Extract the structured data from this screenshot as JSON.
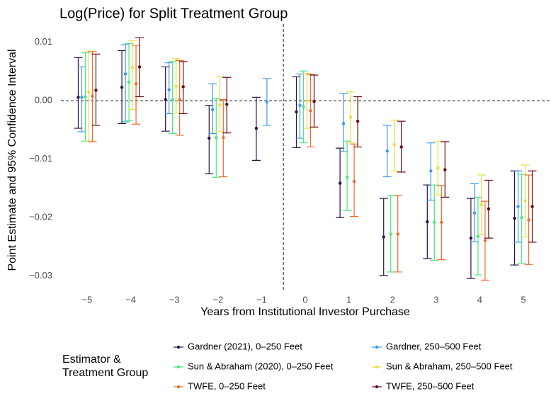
{
  "chart_data": {
    "type": "pointrange",
    "title": "Log(Price) for Split Treatment Group",
    "x_label": "Years from Institutional Investor Purchase",
    "y_label": "Point Estimate and 95% Confidence Interval",
    "legend_title": "Estimator & Treatment Group",
    "x": [
      -5,
      -4,
      -3,
      -2,
      -1,
      0,
      1,
      2,
      3,
      4,
      5
    ],
    "xlim": [
      -5.6,
      5.6
    ],
    "xticks": [
      {
        "value": -5,
        "label": "−5"
      },
      {
        "value": -4,
        "label": "−4"
      },
      {
        "value": -3,
        "label": "−3"
      },
      {
        "value": -2,
        "label": "−2"
      },
      {
        "value": -1,
        "label": "−1"
      },
      0,
      1,
      2,
      3,
      4,
      5
    ],
    "ylim": [
      -0.0327,
      0.0124
    ],
    "yticks": [
      {
        "value": -0.03,
        "label": "−0.03"
      },
      {
        "value": -0.02,
        "label": "−0.02"
      },
      {
        "value": -0.01,
        "label": "−0.01"
      },
      {
        "value": 0,
        "label": "0.00"
      },
      {
        "value": 0.01,
        "label": "0.01"
      }
    ],
    "reference_lines": {
      "y": 0,
      "x": -0.5
    },
    "series": [
      {
        "name": "Gardner (2021), 0–250 Feet",
        "color": "#2e0f46",
        "values": [
          0.0006,
          0.0023,
          0.0002,
          -0.0064,
          -0.0047,
          -0.0019,
          -0.0141,
          -0.0233,
          -0.0207,
          -0.0235,
          -0.0201
        ],
        "lower": [
          -0.0047,
          -0.0039,
          -0.0052,
          -0.0125,
          -0.0102,
          -0.008,
          -0.02,
          -0.0299,
          -0.027,
          -0.0304,
          -0.0281
        ],
        "upper": [
          0.0074,
          0.0086,
          0.0058,
          -0.0008,
          0.0006,
          0.0041,
          -0.0081,
          -0.0167,
          -0.0144,
          -0.0167,
          -0.012
        ]
      },
      {
        "name": "Gardner, 250–500 Feet",
        "color": "#3d9ae8",
        "values": [
          0.0006,
          0.0046,
          0.0019,
          -0.0015,
          -0.0002,
          -0.0008,
          -0.0039,
          -0.0086,
          -0.012,
          -0.0192,
          -0.0181
        ],
        "lower": [
          -0.0053,
          -0.0036,
          -0.0022,
          -0.0056,
          -0.0042,
          -0.0064,
          -0.0087,
          -0.013,
          -0.017,
          -0.0241,
          -0.0242
        ],
        "upper": [
          0.0058,
          0.0096,
          0.0065,
          0.0029,
          0.0038,
          0.0046,
          0.0013,
          -0.0042,
          -0.0072,
          -0.0142,
          -0.012
        ]
      },
      {
        "name": "Sun & Abraham (2020), 0–250 Feet",
        "color": "#4ae87f",
        "values": [
          0.0007,
          0.0032,
          0.0002,
          -0.0063,
          null,
          -0.001,
          -0.0131,
          -0.0228,
          -0.0208,
          -0.0232,
          -0.02
        ],
        "lower": [
          -0.0069,
          -0.0034,
          -0.0056,
          -0.0131,
          null,
          -0.0072,
          -0.0188,
          -0.0293,
          -0.0273,
          -0.0298,
          -0.0278
        ],
        "upper": [
          0.0082,
          0.0098,
          0.0067,
          0.0004,
          null,
          0.0051,
          -0.0069,
          -0.0162,
          -0.0144,
          -0.0165,
          -0.0126
        ]
      },
      {
        "name": "Sun & Abraham, 250–500 Feet",
        "color": "#e8df45",
        "values": [
          0.0015,
          0.0057,
          0.0025,
          -0.0007,
          null,
          0.0,
          -0.0028,
          -0.0075,
          -0.0115,
          -0.0178,
          -0.0171
        ],
        "lower": [
          -0.0069,
          -0.0015,
          -0.0021,
          -0.0053,
          null,
          -0.0047,
          -0.0072,
          -0.012,
          -0.0161,
          -0.0229,
          -0.0233
        ],
        "upper": [
          0.0085,
          0.0103,
          0.0072,
          0.0041,
          null,
          0.0047,
          0.0015,
          -0.0033,
          -0.0069,
          -0.0127,
          -0.011
        ]
      },
      {
        "name": "TWFE, 0–250 Feet",
        "color": "#ee6a2c",
        "values": [
          0.0008,
          0.0029,
          0.0002,
          -0.0063,
          null,
          -0.0017,
          -0.0138,
          -0.0228,
          -0.0208,
          -0.0239,
          -0.0204
        ],
        "lower": [
          -0.007,
          -0.004,
          -0.0059,
          -0.013,
          null,
          -0.0079,
          -0.0198,
          -0.0293,
          -0.0272,
          -0.0307,
          -0.028
        ],
        "upper": [
          0.0084,
          0.0095,
          0.0069,
          0.0002,
          null,
          0.0045,
          -0.0074,
          -0.0162,
          -0.0145,
          -0.0172,
          -0.0127
        ]
      },
      {
        "name": "TWFE, 250–500 Feet",
        "color": "#6b0a12",
        "values": [
          0.0018,
          0.0058,
          0.0024,
          -0.0006,
          null,
          -0.0001,
          -0.0035,
          -0.0079,
          -0.0118,
          -0.0185,
          -0.0181
        ],
        "lower": [
          -0.0042,
          0.0007,
          -0.0022,
          -0.0055,
          null,
          -0.0045,
          -0.0079,
          -0.0122,
          -0.0165,
          -0.0235,
          -0.0242
        ],
        "upper": [
          0.008,
          0.0108,
          0.0067,
          0.004,
          null,
          0.0044,
          0.0007,
          -0.0035,
          -0.007,
          -0.0136,
          -0.012
        ]
      }
    ]
  }
}
